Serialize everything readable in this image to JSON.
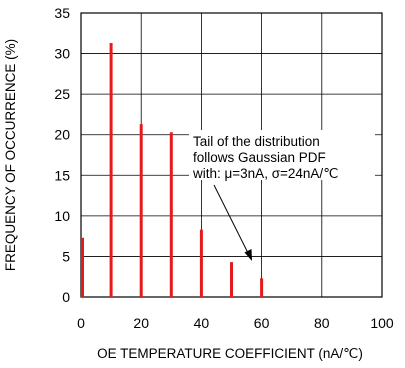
{
  "chart_data": {
    "type": "bar",
    "xlabel": "OE TEMPERATURE COEFFICIENT (nA/℃)",
    "ylabel": "FREQUENCY OF OCCURRENCE (%)",
    "xlim": [
      0,
      100
    ],
    "ylim": [
      0,
      35
    ],
    "x_ticks": [
      0,
      20,
      40,
      60,
      80,
      100
    ],
    "y_ticks": [
      0,
      5,
      10,
      15,
      20,
      25,
      30,
      35
    ],
    "grid": true,
    "bar_color": "#e41a1c",
    "series": [
      {
        "x": [
          0,
          10,
          20,
          30,
          40,
          50,
          60
        ],
        "values": [
          7.3,
          31.3,
          21.3,
          20.3,
          8.3,
          4.3,
          2.3
        ]
      }
    ],
    "annotation": {
      "lines": [
        "Tail of the distribution",
        "follows Gaussian PDF",
        "with: μ=3nA, σ=24nA/℃"
      ],
      "arrow_target": [
        57,
        4.5
      ]
    }
  }
}
